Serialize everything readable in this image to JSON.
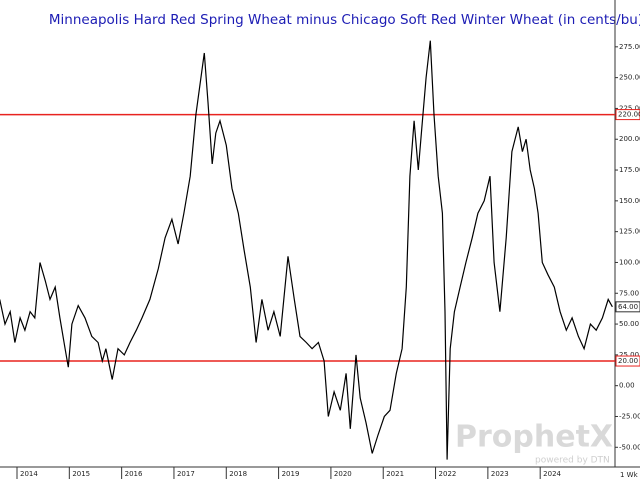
{
  "chart_data": {
    "type": "line",
    "title": "Minneapolis Hard Red Spring Wheat minus Chicago Soft Red Winter Wheat (in cents/bu)",
    "x": [
      2013.67,
      2013.77,
      2013.87,
      2013.96,
      2014.06,
      2014.15,
      2014.25,
      2014.34,
      2014.44,
      2014.54,
      2014.63,
      2014.73,
      2014.82,
      2014.92,
      2014.98,
      2015.05,
      2015.17,
      2015.3,
      2015.43,
      2015.55,
      2015.63,
      2015.7,
      2015.82,
      2015.93,
      2016.05,
      2016.16,
      2016.28,
      2016.39,
      2016.54,
      2016.7,
      2016.83,
      2016.96,
      2017.08,
      2017.19,
      2017.31,
      2017.42,
      2017.58,
      2017.65,
      2017.73,
      2017.8,
      2017.88,
      2018.0,
      2018.11,
      2018.23,
      2018.34,
      2018.46,
      2018.57,
      2018.68,
      2018.8,
      2018.91,
      2019.03,
      2019.18,
      2019.3,
      2019.41,
      2019.53,
      2019.64,
      2019.76,
      2019.87,
      2019.95,
      2020.06,
      2020.18,
      2020.29,
      2020.37,
      2020.48,
      2020.56,
      2020.67,
      2020.79,
      2020.9,
      2021.02,
      2021.13,
      2021.25,
      2021.36,
      2021.44,
      2021.51,
      2021.59,
      2021.67,
      2021.74,
      2021.82,
      2021.9,
      2021.97,
      2022.05,
      2022.13,
      2022.18,
      2022.22,
      2022.28,
      2022.36,
      2022.47,
      2022.58,
      2022.7,
      2022.81,
      2022.93,
      2023.04,
      2023.12,
      2023.23,
      2023.35,
      2023.46,
      2023.58,
      2023.66,
      2023.73,
      2023.81,
      2023.89,
      2023.96,
      2024.04,
      2024.15,
      2024.27,
      2024.38,
      2024.5,
      2024.61,
      2024.73,
      2024.84,
      2024.96,
      2025.07,
      2025.19,
      2025.3,
      2025.38
    ],
    "values": [
      70,
      50,
      60,
      35,
      55,
      45,
      60,
      55,
      100,
      85,
      70,
      80,
      55,
      30,
      15,
      50,
      65,
      55,
      40,
      35,
      20,
      30,
      5,
      30,
      25,
      35,
      45,
      55,
      70,
      95,
      120,
      135,
      115,
      140,
      170,
      220,
      270,
      230,
      180,
      205,
      215,
      195,
      160,
      140,
      110,
      80,
      35,
      70,
      45,
      60,
      40,
      105,
      70,
      40,
      35,
      30,
      35,
      20,
      -25,
      -5,
      -20,
      10,
      -35,
      25,
      -10,
      -30,
      -55,
      -40,
      -25,
      -20,
      10,
      30,
      80,
      170,
      215,
      175,
      210,
      250,
      280,
      220,
      170,
      140,
      60,
      -60,
      30,
      60,
      80,
      100,
      120,
      140,
      150,
      170,
      100,
      60,
      120,
      190,
      210,
      190,
      200,
      175,
      160,
      140,
      100,
      90,
      80,
      60,
      45,
      55,
      40,
      30,
      50,
      45,
      55,
      70,
      64
    ],
    "color": "#000000",
    "xlim": [
      2013.675,
      2025.43
    ],
    "xticks": [
      2014,
      2015,
      2016,
      2017,
      2018,
      2019,
      2020,
      2021,
      2022,
      2023,
      2024
    ],
    "ylim": [
      -66,
      313
    ],
    "yticks": [
      {
        "value": -50,
        "label": "-50.00"
      },
      {
        "value": -25,
        "label": "-25.00"
      },
      {
        "value": 0,
        "label": "0.00"
      },
      {
        "value": 25,
        "label": "25.00"
      },
      {
        "value": 50,
        "label": "50.00"
      },
      {
        "value": 75,
        "label": "75.00"
      },
      {
        "value": 100,
        "label": "100.00"
      },
      {
        "value": 125,
        "label": "125.00"
      },
      {
        "value": 150,
        "label": "150.00"
      },
      {
        "value": 175,
        "label": "175.00"
      },
      {
        "value": 200,
        "label": "200.00"
      },
      {
        "value": 225,
        "label": "225.00"
      },
      {
        "value": 250,
        "label": "250.00"
      },
      {
        "value": 275,
        "label": "275.00"
      }
    ],
    "ref_lines": [
      {
        "value": 220,
        "label": "220.00",
        "color": "#e8231f"
      },
      {
        "value": 20,
        "label": "20.00",
        "color": "#e8231f"
      }
    ],
    "last_value_label": "64.00",
    "period": "1 Wk",
    "watermark": "ProphetX",
    "watermark_sub": "powered by DTN"
  }
}
